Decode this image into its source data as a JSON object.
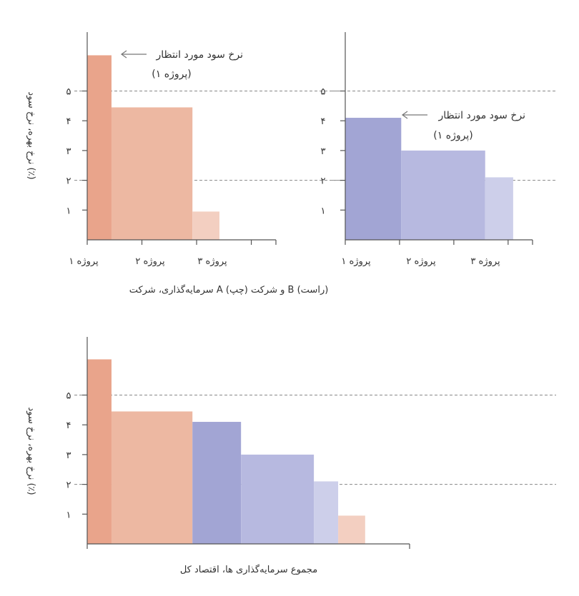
{
  "chart_data": [
    {
      "id": "company_a",
      "type": "bar",
      "categories": [
        "پروژه ۱",
        "پروژه ۲",
        "پروژه ۳"
      ],
      "bars": [
        {
          "value": 6.2,
          "width": 0.45,
          "color": "#e9a48b"
        },
        {
          "value": 4.45,
          "width": 1.5,
          "color": "#edb8a2"
        },
        {
          "value": 0.95,
          "width": 0.5,
          "color": "#f3cfc1"
        }
      ],
      "yticks": [
        {
          "v": 1,
          "label": "۱"
        },
        {
          "v": 2,
          "label": "۲"
        },
        {
          "v": 3,
          "label": "۳"
        },
        {
          "v": 4,
          "label": "۴"
        },
        {
          "v": 5,
          "label": "۵"
        }
      ],
      "ylim": [
        0,
        7
      ],
      "xlim": [
        0,
        3.5
      ],
      "dashed_lines": [
        2,
        5
      ],
      "annotation": {
        "line1": "نرخ سود مورد انتظار",
        "line2": "(پروژه ۱)"
      },
      "ylabel": "نرخ بهره، نرخ سود (٪)"
    },
    {
      "id": "company_b",
      "type": "bar",
      "categories": [
        "پروژه ۱",
        "پروژه ۲",
        "پروژه ۳"
      ],
      "bars": [
        {
          "value": 4.1,
          "width": 0.9,
          "color": "#a2a5d4"
        },
        {
          "value": 3.0,
          "width": 1.35,
          "color": "#b7b9e0"
        },
        {
          "value": 2.1,
          "width": 0.45,
          "color": "#cdcfea"
        }
      ],
      "yticks": [
        {
          "v": 1,
          "label": "۱"
        },
        {
          "v": 2,
          "label": "۲"
        },
        {
          "v": 3,
          "label": "۳"
        },
        {
          "v": 4,
          "label": "۴"
        },
        {
          "v": 5,
          "label": "۵"
        }
      ],
      "ylim": [
        0,
        7
      ],
      "xlim": [
        0,
        3.5
      ],
      "dashed_lines": [
        2,
        5
      ],
      "annotation": {
        "line1": "نرخ سود مورد انتظار",
        "line2": "(پروژه ۱)"
      }
    },
    {
      "id": "economy_total",
      "type": "bar",
      "bars": [
        {
          "value": 6.2,
          "width": 0.45,
          "color": "#e9a48b"
        },
        {
          "value": 4.45,
          "width": 1.5,
          "color": "#edb8a2"
        },
        {
          "value": 4.1,
          "width": 0.9,
          "color": "#a2a5d4"
        },
        {
          "value": 3.0,
          "width": 1.35,
          "color": "#b7b9e0"
        },
        {
          "value": 2.1,
          "width": 0.45,
          "color": "#cdcfea"
        },
        {
          "value": 0.95,
          "width": 0.5,
          "color": "#f3cfc1"
        }
      ],
      "yticks": [
        {
          "v": 1,
          "label": "۱"
        },
        {
          "v": 2,
          "label": "۲"
        },
        {
          "v": 3,
          "label": "۳"
        },
        {
          "v": 4,
          "label": "۴"
        },
        {
          "v": 5,
          "label": "۵"
        }
      ],
      "ylim": [
        0,
        7
      ],
      "xlim": [
        0,
        5.4
      ],
      "dashed_lines": [
        2,
        5
      ],
      "xlabel": "مجموع سرمایه‌گذاری ها، اقتصاد کل",
      "ylabel": "نرخ بهره، نرخ سود (٪)"
    }
  ],
  "top_xlabel": "سرمایه‌گذاری، شرکت A (چپ) و شرکت B (راست)"
}
